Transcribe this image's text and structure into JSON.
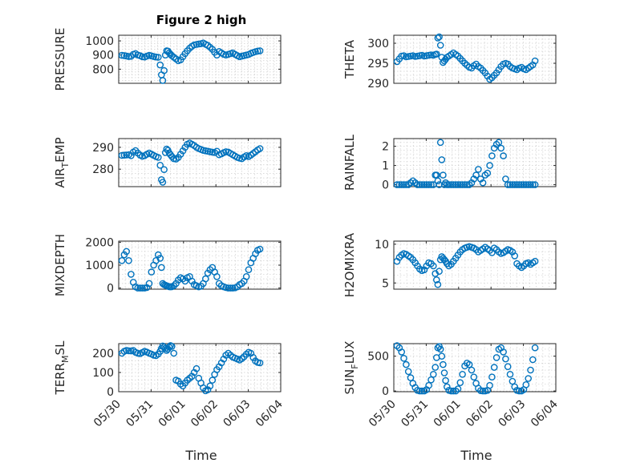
{
  "figure": {
    "title": "Figure 2 high",
    "marker_color": "#0072BD",
    "axis_color": "#262626",
    "grid": true
  },
  "chart_data": [
    {
      "type": "scatter",
      "id": "pressure",
      "ylabel": "PRESSURE",
      "ylabel_parts": [
        "PRESSURE"
      ],
      "ylim": [
        700,
        1040
      ],
      "yticks": [
        800,
        900,
        1000
      ],
      "xlim": [
        0,
        5
      ],
      "xtick_labels": [
        "05/30",
        "05/31",
        "06/01",
        "06/02",
        "06/03",
        "06/04"
      ],
      "x_labels_visible": false,
      "x": [
        0.1,
        0.17,
        0.24,
        0.31,
        0.38,
        0.45,
        0.52,
        0.59,
        0.66,
        0.73,
        0.8,
        0.87,
        0.94,
        1.01,
        1.08,
        1.15,
        1.22,
        1.28,
        1.32,
        1.36,
        1.4,
        1.44,
        1.48,
        1.52,
        1.56,
        1.6,
        1.64,
        1.7,
        1.77,
        1.84,
        1.91,
        1.98,
        2.05,
        2.12,
        2.19,
        2.26,
        2.33,
        2.4,
        2.47,
        2.54,
        2.61,
        2.68,
        2.75,
        2.82,
        2.89,
        2.96,
        3.03,
        3.1,
        3.17,
        3.24,
        3.31,
        3.38,
        3.45,
        3.52,
        3.59,
        3.66,
        3.73,
        3.8,
        3.87,
        3.94,
        4.01,
        4.08,
        4.15,
        4.22,
        4.29,
        4.36
      ],
      "y": [
        898,
        896,
        893,
        889,
        891,
        905,
        910,
        900,
        895,
        888,
        886,
        892,
        898,
        894,
        889,
        886,
        884,
        830,
        760,
        720,
        790,
        900,
        930,
        928,
        915,
        905,
        895,
        885,
        872,
        860,
        866,
        888,
        910,
        930,
        948,
        962,
        972,
        975,
        978,
        980,
        985,
        976,
        968,
        955,
        940,
        920,
        900,
        925,
        915,
        905,
        900,
        905,
        910,
        915,
        905,
        896,
        888,
        892,
        896,
        900,
        904,
        912,
        918,
        924,
        928,
        930
      ]
    },
    {
      "type": "scatter",
      "id": "theta",
      "ylabel": "THETA",
      "ylabel_parts": [
        "THETA"
      ],
      "ylim": [
        290,
        302
      ],
      "yticks": [
        290,
        295,
        300
      ],
      "xlim": [
        0,
        5
      ],
      "xtick_labels": [
        "05/30",
        "05/31",
        "06/01",
        "06/02",
        "06/03",
        "06/04"
      ],
      "x_labels_visible": false,
      "x": [
        0.1,
        0.17,
        0.24,
        0.31,
        0.38,
        0.45,
        0.52,
        0.59,
        0.66,
        0.73,
        0.8,
        0.87,
        0.94,
        1.01,
        1.08,
        1.15,
        1.22,
        1.28,
        1.32,
        1.36,
        1.4,
        1.44,
        1.48,
        1.52,
        1.56,
        1.6,
        1.64,
        1.7,
        1.77,
        1.84,
        1.91,
        1.98,
        2.05,
        2.12,
        2.19,
        2.26,
        2.33,
        2.4,
        2.47,
        2.54,
        2.61,
        2.68,
        2.75,
        2.82,
        2.89,
        2.96,
        3.03,
        3.1,
        3.17,
        3.24,
        3.31,
        3.38,
        3.45,
        3.52,
        3.59,
        3.66,
        3.73,
        3.8,
        3.87,
        3.94,
        4.01,
        4.08,
        4.15,
        4.22,
        4.29,
        4.36
      ],
      "y": [
        295.4,
        296.1,
        296.8,
        296.9,
        296.6,
        296.7,
        296.8,
        296.9,
        296.7,
        296.8,
        296.9,
        297.0,
        296.8,
        296.9,
        297.0,
        297.1,
        297.0,
        297.2,
        297.3,
        301.3,
        301.6,
        299.5,
        296.5,
        295.2,
        295.6,
        296.0,
        296.5,
        296.8,
        297.2,
        297.6,
        297.2,
        296.8,
        296.2,
        295.6,
        295.0,
        294.5,
        294.0,
        293.8,
        294.4,
        294.8,
        294.2,
        293.8,
        293.2,
        292.6,
        291.8,
        291.0,
        291.4,
        292.0,
        292.6,
        293.4,
        294.2,
        294.8,
        295.0,
        294.8,
        294.2,
        293.8,
        293.6,
        293.4,
        293.8,
        294.0,
        293.6,
        293.4,
        293.8,
        294.2,
        294.6,
        295.6
      ]
    },
    {
      "type": "scatter",
      "id": "air_temp",
      "ylabel": "AIR_TEMP",
      "ylabel_parts": [
        "AIR",
        "T",
        "EMP"
      ],
      "ylim": [
        272,
        294
      ],
      "yticks": [
        280,
        290
      ],
      "xlim": [
        0,
        5
      ],
      "xtick_labels": [
        "05/30",
        "05/31",
        "06/01",
        "06/02",
        "06/03",
        "06/04"
      ],
      "x_labels_visible": false,
      "x": [
        0.1,
        0.17,
        0.24,
        0.31,
        0.38,
        0.45,
        0.52,
        0.59,
        0.66,
        0.73,
        0.8,
        0.87,
        0.94,
        1.01,
        1.08,
        1.15,
        1.22,
        1.28,
        1.32,
        1.36,
        1.4,
        1.44,
        1.48,
        1.52,
        1.56,
        1.6,
        1.64,
        1.7,
        1.77,
        1.84,
        1.91,
        1.98,
        2.05,
        2.12,
        2.19,
        2.26,
        2.33,
        2.4,
        2.47,
        2.54,
        2.61,
        2.68,
        2.75,
        2.82,
        2.89,
        2.96,
        3.03,
        3.1,
        3.17,
        3.24,
        3.31,
        3.38,
        3.45,
        3.52,
        3.59,
        3.66,
        3.73,
        3.8,
        3.87,
        3.94,
        4.01,
        4.08,
        4.15,
        4.22,
        4.29,
        4.36
      ],
      "y": [
        286.3,
        286.4,
        286.5,
        286.6,
        286.2,
        287.8,
        288.5,
        287.4,
        286.4,
        285.9,
        286.2,
        286.8,
        287.4,
        286.9,
        286.3,
        285.8,
        285.4,
        281.8,
        275.2,
        274.0,
        279.8,
        287.6,
        289.2,
        288.6,
        287.4,
        286.6,
        285.8,
        284.8,
        284.6,
        285.4,
        286.8,
        288.4,
        290.0,
        291.4,
        292.0,
        291.4,
        290.8,
        290.0,
        289.4,
        289.0,
        288.6,
        288.4,
        288.2,
        288.0,
        287.8,
        287.6,
        288.2,
        286.6,
        287.0,
        287.6,
        288.0,
        287.8,
        287.2,
        286.6,
        286.0,
        285.4,
        285.0,
        284.8,
        285.6,
        286.2,
        285.8,
        286.4,
        287.2,
        288.0,
        288.8,
        289.4
      ]
    },
    {
      "type": "scatter",
      "id": "rainfall",
      "ylabel": "RAINFALL",
      "ylabel_parts": [
        "RAINFALL"
      ],
      "ylim": [
        -0.1,
        2.4
      ],
      "yticks": [
        0,
        1,
        2
      ],
      "xlim": [
        0,
        5
      ],
      "xtick_labels": [
        "05/30",
        "05/31",
        "06/01",
        "06/02",
        "06/03",
        "06/04"
      ],
      "x_labels_visible": false,
      "x": [
        0.1,
        0.17,
        0.24,
        0.31,
        0.38,
        0.45,
        0.52,
        0.59,
        0.66,
        0.73,
        0.8,
        0.87,
        0.94,
        1.01,
        1.08,
        1.15,
        1.22,
        1.28,
        1.32,
        1.36,
        1.4,
        1.44,
        1.48,
        1.52,
        1.56,
        1.6,
        1.64,
        1.7,
        1.77,
        1.84,
        1.91,
        1.98,
        2.05,
        2.12,
        2.19,
        2.26,
        2.33,
        2.4,
        2.47,
        2.54,
        2.61,
        2.68,
        2.75,
        2.82,
        2.89,
        2.96,
        3.03,
        3.1,
        3.17,
        3.24,
        3.31,
        3.38,
        3.45,
        3.52,
        3.59,
        3.66,
        3.73,
        3.8,
        3.87,
        3.94,
        4.01,
        4.08,
        4.15,
        4.22,
        4.29,
        4.36
      ],
      "y": [
        0.0,
        0.0,
        0.0,
        0.0,
        0.0,
        0.0,
        0.1,
        0.2,
        0.1,
        0.0,
        0.0,
        0.0,
        0.0,
        0.0,
        0.0,
        0.0,
        0.0,
        0.5,
        0.5,
        0.2,
        0.0,
        2.2,
        1.3,
        0.5,
        0.0,
        0.1,
        0.0,
        0.0,
        0.0,
        0.0,
        0.0,
        0.0,
        0.0,
        0.0,
        0.0,
        0.0,
        0.0,
        0.1,
        0.3,
        0.5,
        0.8,
        0.3,
        0.1,
        0.5,
        0.6,
        1.0,
        1.5,
        1.9,
        2.1,
        2.2,
        1.9,
        1.5,
        0.3,
        0.0,
        0.0,
        0.0,
        0.0,
        0.0,
        0.0,
        0.0,
        0.0,
        0.0,
        0.0,
        0.0,
        0.0,
        0.0
      ]
    },
    {
      "type": "scatter",
      "id": "mixdepth",
      "ylabel": "MIXDEPTH",
      "ylabel_parts": [
        "MIXDEPTH"
      ],
      "ylim": [
        -50,
        2050
      ],
      "yticks": [
        0,
        1000,
        2000
      ],
      "xlim": [
        0,
        5
      ],
      "xtick_labels": [
        "05/30",
        "05/31",
        "06/01",
        "06/02",
        "06/03",
        "06/04"
      ],
      "x_labels_visible": false,
      "x": [
        0.1,
        0.17,
        0.24,
        0.31,
        0.38,
        0.45,
        0.52,
        0.59,
        0.66,
        0.73,
        0.8,
        0.87,
        0.94,
        1.01,
        1.08,
        1.15,
        1.22,
        1.28,
        1.32,
        1.36,
        1.4,
        1.44,
        1.48,
        1.52,
        1.56,
        1.6,
        1.64,
        1.7,
        1.77,
        1.84,
        1.91,
        1.98,
        2.05,
        2.12,
        2.19,
        2.26,
        2.33,
        2.4,
        2.47,
        2.54,
        2.61,
        2.68,
        2.75,
        2.82,
        2.89,
        2.96,
        3.03,
        3.1,
        3.17,
        3.24,
        3.31,
        3.38,
        3.45,
        3.52,
        3.59,
        3.66,
        3.73,
        3.8,
        3.87,
        3.94,
        4.01,
        4.08,
        4.15,
        4.22,
        4.29,
        4.36
      ],
      "y": [
        1200,
        1450,
        1600,
        1200,
        600,
        250,
        50,
        0,
        0,
        0,
        0,
        20,
        200,
        700,
        1000,
        1200,
        1450,
        1300,
        900,
        200,
        150,
        120,
        100,
        80,
        60,
        50,
        60,
        100,
        200,
        350,
        450,
        400,
        300,
        450,
        500,
        300,
        150,
        100,
        50,
        80,
        200,
        400,
        650,
        800,
        900,
        700,
        500,
        200,
        100,
        50,
        20,
        0,
        0,
        0,
        10,
        50,
        150,
        200,
        300,
        500,
        800,
        1100,
        1300,
        1500,
        1650,
        1700
      ]
    },
    {
      "type": "scatter",
      "id": "h2omixra",
      "ylabel": "H2OMIXRA",
      "ylabel_parts": [
        "H2OMIXRA"
      ],
      "ylim": [
        4.2,
        10.4
      ],
      "yticks": [
        5,
        10
      ],
      "xlim": [
        0,
        5
      ],
      "xtick_labels": [
        "05/30",
        "05/31",
        "06/01",
        "06/02",
        "06/03",
        "06/04"
      ],
      "x_labels_visible": false,
      "x": [
        0.1,
        0.17,
        0.24,
        0.31,
        0.38,
        0.45,
        0.52,
        0.59,
        0.66,
        0.73,
        0.8,
        0.87,
        0.94,
        1.01,
        1.08,
        1.15,
        1.22,
        1.28,
        1.32,
        1.36,
        1.4,
        1.44,
        1.48,
        1.52,
        1.56,
        1.6,
        1.64,
        1.7,
        1.77,
        1.84,
        1.91,
        1.98,
        2.05,
        2.12,
        2.19,
        2.26,
        2.33,
        2.4,
        2.47,
        2.54,
        2.61,
        2.68,
        2.75,
        2.82,
        2.89,
        2.96,
        3.03,
        3.1,
        3.17,
        3.24,
        3.31,
        3.38,
        3.45,
        3.52,
        3.59,
        3.66,
        3.73,
        3.8,
        3.87,
        3.94,
        4.01,
        4.08,
        4.15,
        4.22,
        4.29,
        4.36
      ],
      "y": [
        7.8,
        8.3,
        8.6,
        8.8,
        8.7,
        8.5,
        8.3,
        8.0,
        7.6,
        7.2,
        6.8,
        6.6,
        6.7,
        7.2,
        7.6,
        7.5,
        7.2,
        6.2,
        5.4,
        4.8,
        6.5,
        8.0,
        8.4,
        8.2,
        8.0,
        7.8,
        7.5,
        7.2,
        7.4,
        7.8,
        8.2,
        8.6,
        9.0,
        9.3,
        9.5,
        9.6,
        9.7,
        9.6,
        9.5,
        9.3,
        9.0,
        9.2,
        9.4,
        9.6,
        9.4,
        9.2,
        8.9,
        9.5,
        9.3,
        9.0,
        8.8,
        8.9,
        9.1,
        9.3,
        9.2,
        9.0,
        8.5,
        7.5,
        7.2,
        7.0,
        7.2,
        7.5,
        7.6,
        7.4,
        7.6,
        7.8
      ]
    },
    {
      "type": "scatter",
      "id": "terr_msl",
      "ylabel": "TERR_MSL",
      "ylabel_parts": [
        "TERR",
        "M",
        "SL"
      ],
      "ylim": [
        0,
        250
      ],
      "yticks": [
        0,
        100,
        200
      ],
      "xlim": [
        0,
        5
      ],
      "xtick_labels": [
        "05/30",
        "05/31",
        "06/01",
        "06/02",
        "06/03",
        "06/04"
      ],
      "x_labels_visible": true,
      "x": [
        0.1,
        0.17,
        0.24,
        0.31,
        0.38,
        0.45,
        0.52,
        0.59,
        0.66,
        0.73,
        0.8,
        0.87,
        0.94,
        1.01,
        1.08,
        1.15,
        1.22,
        1.28,
        1.32,
        1.36,
        1.4,
        1.44,
        1.48,
        1.52,
        1.56,
        1.6,
        1.64,
        1.7,
        1.77,
        1.84,
        1.91,
        1.98,
        2.05,
        2.12,
        2.19,
        2.26,
        2.33,
        2.4,
        2.47,
        2.54,
        2.61,
        2.68,
        2.75,
        2.82,
        2.89,
        2.96,
        3.03,
        3.1,
        3.17,
        3.24,
        3.31,
        3.38,
        3.45,
        3.52,
        3.59,
        3.66,
        3.73,
        3.8,
        3.87,
        3.94,
        4.01,
        4.08,
        4.15,
        4.22,
        4.29,
        4.36
      ],
      "y": [
        200,
        210,
        215,
        213,
        212,
        214,
        205,
        200,
        198,
        204,
        210,
        206,
        200,
        196,
        190,
        188,
        196,
        210,
        225,
        238,
        232,
        225,
        215,
        222,
        232,
        240,
        236,
        200,
        60,
        55,
        40,
        30,
        45,
        60,
        70,
        80,
        100,
        120,
        70,
        45,
        20,
        5,
        10,
        30,
        60,
        90,
        115,
        130,
        150,
        170,
        190,
        200,
        190,
        180,
        175,
        170,
        165,
        172,
        182,
        195,
        205,
        200,
        178,
        160,
        152,
        150
      ]
    },
    {
      "type": "scatter",
      "id": "sun_flux",
      "ylabel": "SUN_FLUX",
      "ylabel_parts": [
        "SUN",
        "F",
        "LUX"
      ],
      "ylim": [
        -10,
        680
      ],
      "yticks": [
        0,
        500
      ],
      "xlim": [
        0,
        5
      ],
      "xtick_labels": [
        "05/30",
        "05/31",
        "06/01",
        "06/02",
        "06/03",
        "06/04"
      ],
      "x_labels_visible": true,
      "x": [
        0.1,
        0.17,
        0.24,
        0.31,
        0.38,
        0.45,
        0.52,
        0.59,
        0.66,
        0.73,
        0.8,
        0.87,
        0.94,
        1.01,
        1.08,
        1.15,
        1.22,
        1.28,
        1.32,
        1.36,
        1.4,
        1.44,
        1.48,
        1.52,
        1.56,
        1.6,
        1.64,
        1.7,
        1.77,
        1.84,
        1.91,
        1.98,
        2.05,
        2.12,
        2.19,
        2.26,
        2.33,
        2.4,
        2.47,
        2.54,
        2.61,
        2.68,
        2.75,
        2.82,
        2.89,
        2.96,
        3.03,
        3.1,
        3.17,
        3.24,
        3.31,
        3.38,
        3.45,
        3.52,
        3.59,
        3.66,
        3.73,
        3.8,
        3.87,
        3.94,
        4.01,
        4.08,
        4.15,
        4.22,
        4.29,
        4.36
      ],
      "y": [
        650,
        620,
        560,
        470,
        380,
        280,
        190,
        110,
        50,
        10,
        0,
        0,
        0,
        20,
        80,
        160,
        240,
        340,
        480,
        620,
        640,
        600,
        500,
        380,
        260,
        150,
        60,
        10,
        0,
        0,
        0,
        30,
        120,
        240,
        360,
        400,
        380,
        300,
        200,
        110,
        40,
        5,
        0,
        0,
        10,
        80,
        200,
        340,
        480,
        600,
        620,
        560,
        460,
        350,
        240,
        140,
        60,
        10,
        0,
        0,
        20,
        90,
        180,
        300,
        450,
        620
      ]
    }
  ],
  "xaxis": {
    "label": "Time"
  }
}
